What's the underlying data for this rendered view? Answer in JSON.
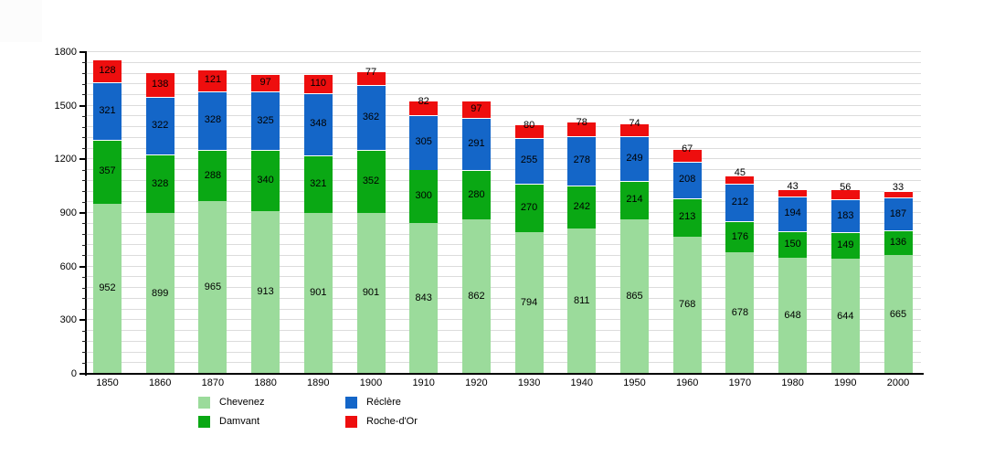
{
  "chart_data": {
    "type": "bar",
    "stacked": true,
    "title": "",
    "xlabel": "",
    "ylabel": "",
    "categories": [
      "1850",
      "1860",
      "1870",
      "1880",
      "1890",
      "1900",
      "1910",
      "1920",
      "1930",
      "1940",
      "1950",
      "1960",
      "1970",
      "1980",
      "1990",
      "2000"
    ],
    "series": [
      {
        "name": "Chevenez",
        "color": "#9BDB9B",
        "values": [
          952,
          899,
          965,
          913,
          901,
          901,
          843,
          862,
          794,
          811,
          865,
          768,
          678,
          648,
          644,
          665
        ]
      },
      {
        "name": "Damvant",
        "color": "#0AA814",
        "values": [
          357,
          328,
          288,
          340,
          321,
          352,
          300,
          280,
          270,
          242,
          214,
          213,
          176,
          150,
          149,
          136
        ]
      },
      {
        "name": "Réclère",
        "color": "#1466C8",
        "values": [
          321,
          322,
          328,
          325,
          348,
          362,
          305,
          291,
          255,
          278,
          249,
          208,
          212,
          194,
          183,
          187
        ]
      },
      {
        "name": "Roche-d'Or",
        "color": "#EE0E0E",
        "values": [
          128,
          138,
          121,
          97,
          110,
          77,
          82,
          97,
          80,
          78,
          74,
          67,
          45,
          43,
          56,
          33
        ]
      }
    ],
    "ylim": [
      0,
      1800
    ],
    "y_major_ticks": [
      0,
      300,
      600,
      900,
      1200,
      1500,
      1800
    ],
    "y_minor_step": 60,
    "grid": "horizontal",
    "grid_color": "#DCDCDC",
    "axis_color": "#000000",
    "label_color": "#000000",
    "bar_value_labels": true,
    "legend_position": "bottom-left",
    "legend_columns": [
      [
        "Chevenez",
        "Damvant"
      ],
      [
        "Réclère",
        "Roche-d'Or"
      ]
    ]
  }
}
